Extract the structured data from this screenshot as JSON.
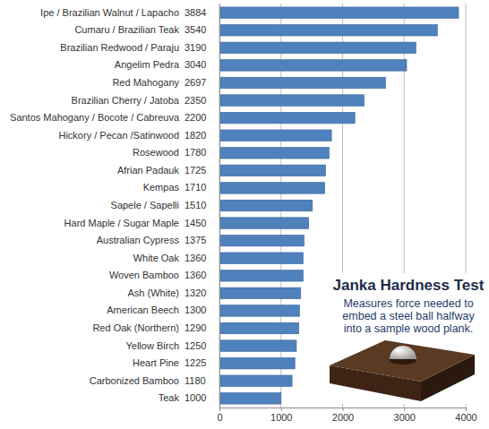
{
  "chart_data": {
    "type": "bar",
    "orientation": "horizontal",
    "categories": [
      "Ipe / Brazilian Walnut / Lapacho",
      "Cumaru / Brazilian Teak",
      "Brazilian Redwood / Paraju",
      "Angelim Pedra",
      "Red Mahogany",
      "Brazilian Cherry / Jatoba",
      "Santos Mahogany / Bocote / Cabreuva",
      "Hickory / Pecan /Satinwood",
      "Rosewood",
      "Afrian Padauk",
      "Kempas",
      "Sapele / Sapelli",
      "Hard Maple / Sugar Maple",
      "Australian Cypress",
      "White Oak",
      "Woven Bamboo",
      "Ash (White)",
      "American Beech",
      "Red Oak (Northern)",
      "Yellow Birch",
      "Heart Pine",
      "Carbonized Bamboo",
      "Teak"
    ],
    "values": [
      3884,
      3540,
      3190,
      3040,
      2697,
      2350,
      2200,
      1820,
      1780,
      1725,
      1710,
      1510,
      1450,
      1375,
      1360,
      1360,
      1320,
      1300,
      1290,
      1250,
      1225,
      1180,
      1000
    ],
    "color": "#4f81bd",
    "xlim": [
      0,
      4000
    ],
    "xticks": [
      0,
      1000,
      2000,
      3000,
      4000
    ],
    "grid": true,
    "data_labels": true,
    "annotations": [
      "Janka Hardness Test",
      "Measures force needed to",
      "embed a steel ball halfway",
      "into a sample wood plank."
    ]
  }
}
